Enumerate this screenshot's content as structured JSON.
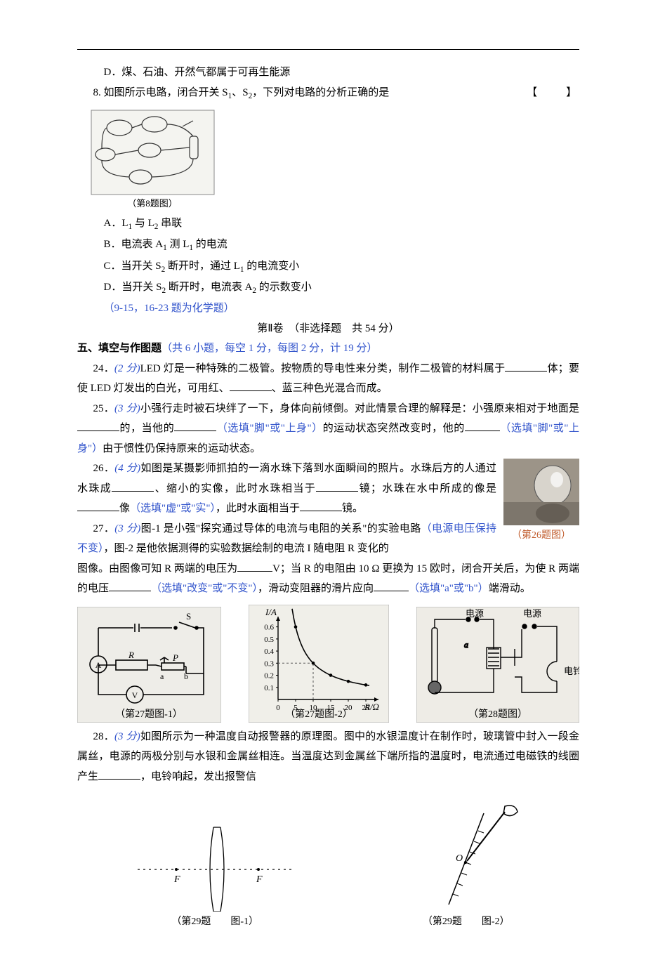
{
  "q7d": "D．煤、石油、开然气都属于可再生能源",
  "q8": {
    "stem_pre": "8. 如图所示电路，闭合开关 S",
    "stem_mid": "、S",
    "stem_post": "，下列对电路的分析正确的是",
    "bracket": "【　　】",
    "fig_cap": "（第8题图）",
    "optA_pre": "A．L",
    "optA_mid": " 与 L",
    "optA_post": " 串联",
    "optB_pre": "B．电流表 A",
    "optB_mid": " 测 L",
    "optB_post": " 的电流",
    "optC_pre": "C．当开关 S",
    "optC_mid": " 断开时，通过 L",
    "optC_post": " 的电流变小",
    "optD_pre": "D．当开关 S",
    "optD_mid": " 断开时，电流表 A",
    "optD_post": " 的示数变小"
  },
  "note_blue": "（9-15，16-23 题为化学题）",
  "part2": "第Ⅱ卷　（非选择题　共 54 分）",
  "section5": {
    "head": "五、填空与作图题",
    "tail": "（共 6 小题，每空 1 分，每图 2 分，计 19 分）"
  },
  "q24": {
    "lead": "24．",
    "pts": "(2 分)",
    "a": "LED 灯是一种特殊的二极管。按物质的导电性来分类，制作二极管的材料属于",
    "b": "体；要使 LED 灯发出的白光，可用红、",
    "c": "、蓝三种色光混合而成。"
  },
  "q25": {
    "lead": "25．",
    "pts": "(3 分)",
    "a": "小强行走时被石块绊了一下，身体向前倾倒。对此情景合理的解释是：小强原来相对于地面是",
    "b": "的，当他的",
    "hint1": "（选填\"脚\"或\"上身\"）",
    "c": "的运动状态突然改变时，他的",
    "hint2": "（选填\"脚\"或\"上身\"）",
    "d": "由于惯性仍保持原来的运动状态。"
  },
  "q26": {
    "lead": "26．",
    "pts": "(4 分)",
    "a": "如图是某摄影师抓拍的一滴水珠下落到水面瞬间的照片。水珠后方的人通过水珠成",
    "b": "、缩小的实像，此时水珠相当于",
    "c": "镜；水珠在水中所成的像是",
    "d": "像",
    "hint": "（选填\"虚\"或\"实\"）",
    "e": "，此时水面相当于",
    "f": "镜。",
    "cap": "（第26题图）"
  },
  "q27": {
    "lead": "27．",
    "pts": "(3 分)",
    "a": "图-1 是小强\"探究通过导体的电流与电阻的关系\"的实验电路",
    "hint_a": "（电源电压保持不变）",
    "b": "，图-2 是他依据测得的实验数据绘制的电流 I 随电阻 R 变化的图像。由图像可知 R 两端的电压为",
    "c": "V；当 R 的电阻由 10 Ω 更换为 15 欧时，闭合开关后，为使 R 两端的电压",
    "hint_b": "（选填\"改变\"或\"不变\"）",
    "d": "，滑动变阻器的滑片应向",
    "hint_c": "（选填\"a\"或\"b\"）",
    "e": "端滑动。",
    "cap1": "（第27题图-1）",
    "cap2": "（第27题图-2）",
    "cap3": "（第28题图）",
    "chart": {
      "y_label": "I/A",
      "x_label": "R/Ω",
      "y_ticks": [
        "0.1",
        "0.2",
        "0.3",
        "0.4",
        "0.5",
        "0.6"
      ],
      "x_ticks": [
        "0",
        "5",
        "10",
        "15",
        "20",
        "25"
      ],
      "points_x": [
        5,
        10,
        15,
        20,
        25
      ],
      "points_y": [
        0.6,
        0.3,
        0.2,
        0.15,
        0.12
      ],
      "axis_color": "#000",
      "grid_color": "#555",
      "curve_color": "#000"
    },
    "circuit28": {
      "labels": [
        "电源",
        "电源",
        "电铃",
        "a"
      ]
    }
  },
  "q28": {
    "lead": "28．",
    "pts": "(3 分)",
    "a": "如图所示为一种温度自动报警器的原理图。图中的水银温度计在制作时，玻璃管中封入一段金属丝，电源的两极分别与水银和金属丝相连。当温度达到金属丝下端所指的温度时，电流通过电磁铁的线圈产生",
    "b": "，电铃响起，发出报警信"
  },
  "q29": {
    "cap1": "（第29题　　图-1）",
    "cap2": "（第29题　　图-2）",
    "lens": {
      "F": "F"
    },
    "mirror": {
      "O": "O"
    }
  }
}
